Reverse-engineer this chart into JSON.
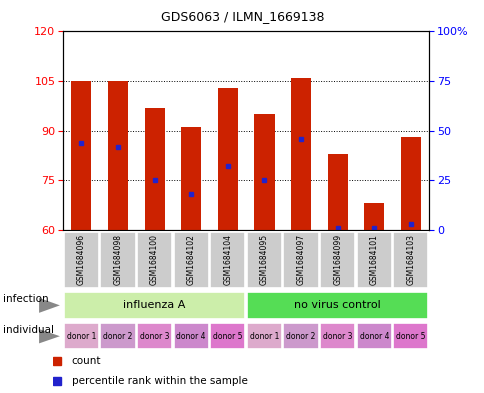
{
  "title": "GDS6063 / ILMN_1669138",
  "samples": [
    "GSM1684096",
    "GSM1684098",
    "GSM1684100",
    "GSM1684102",
    "GSM1684104",
    "GSM1684095",
    "GSM1684097",
    "GSM1684099",
    "GSM1684101",
    "GSM1684103"
  ],
  "counts": [
    105,
    105,
    97,
    91,
    103,
    95,
    106,
    83,
    68,
    88
  ],
  "percentiles": [
    44,
    42,
    25,
    18,
    32,
    25,
    46,
    1,
    1,
    3
  ],
  "y_min": 60,
  "y_max": 120,
  "y_ticks": [
    60,
    75,
    90,
    105,
    120
  ],
  "y2_ticks": [
    0,
    25,
    50,
    75,
    100
  ],
  "bar_color": "#cc2200",
  "percentile_color": "#2222cc",
  "group1_label": "influenza A",
  "group2_label": "no virus control",
  "group1_color": "#cceeaa",
  "group2_color": "#55dd55",
  "donor_colors": [
    "#ddaacc",
    "#cc99cc",
    "#dd88cc",
    "#cc88cc",
    "#dd77cc",
    "#ddaacc",
    "#cc99cc",
    "#dd88cc",
    "#cc88cc",
    "#dd77cc"
  ],
  "donors": [
    "donor 1",
    "donor 2",
    "donor 3",
    "donor 4",
    "donor 5",
    "donor 1",
    "donor 2",
    "donor 3",
    "donor 4",
    "donor 5"
  ],
  "infection_label": "infection",
  "individual_label": "individual",
  "legend_count": "count",
  "legend_percentile": "percentile rank within the sample",
  "sample_bg": "#cccccc",
  "bar_width": 0.55
}
